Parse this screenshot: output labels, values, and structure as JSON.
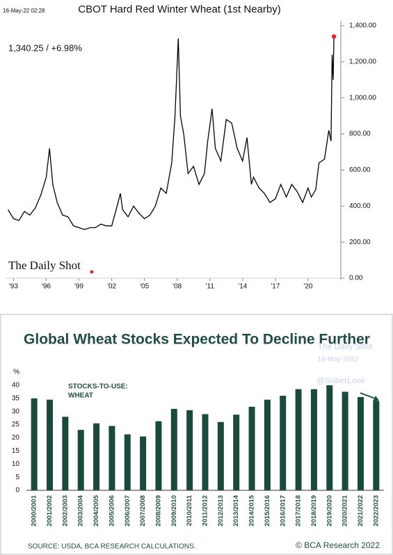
{
  "chart_data": [
    {
      "type": "line",
      "title": "CBOT Hard Red Winter Wheat (1st Nearby)",
      "annotations": [
        "16-May-22 02:28",
        "1,340.25  /  +6.98%",
        "The Daily Shot"
      ],
      "color": "#000000",
      "marker_color": "#e8262a",
      "x": [
        1992.5,
        1993,
        1993.5,
        1994,
        1994.5,
        1995,
        1995.5,
        1996,
        1996.3,
        1996.6,
        1997,
        1997.5,
        1998,
        1998.5,
        1999,
        1999.5,
        2000,
        2000.5,
        2001,
        2001.5,
        2002,
        2002.5,
        2002.8,
        2003,
        2003.5,
        2004,
        2004.5,
        2005,
        2005.5,
        2006,
        2006.5,
        2007,
        2007.5,
        2007.8,
        2008.1,
        2008.3,
        2008.6,
        2009,
        2009.5,
        2010,
        2010.5,
        2010.8,
        2011,
        2011.2,
        2011.5,
        2012,
        2012.5,
        2013,
        2013.5,
        2014,
        2014.4,
        2014.8,
        2015,
        2015.5,
        2016,
        2016.5,
        2017,
        2017.5,
        2018,
        2018.5,
        2019,
        2019.5,
        2020,
        2020.3,
        2020.7,
        2021,
        2021.5,
        2021.9,
        2022.1,
        2022.2,
        2022.3,
        2022.37
      ],
      "values": [
        380,
        330,
        320,
        370,
        350,
        390,
        460,
        560,
        720,
        520,
        420,
        350,
        340,
        290,
        280,
        270,
        280,
        280,
        300,
        290,
        290,
        400,
        470,
        380,
        340,
        400,
        360,
        330,
        350,
        400,
        500,
        470,
        640,
        900,
        1330,
        900,
        800,
        580,
        620,
        520,
        580,
        760,
        850,
        940,
        720,
        650,
        880,
        860,
        720,
        650,
        780,
        520,
        560,
        500,
        470,
        420,
        440,
        520,
        450,
        520,
        480,
        420,
        500,
        450,
        490,
        640,
        660,
        820,
        760,
        1240,
        1100,
        1340.25
      ],
      "xlim": [
        1992.4,
        2023.0
      ],
      "xticks": [
        {
          "value": 1993,
          "label": "'93"
        },
        {
          "value": 1996,
          "label": "'96"
        },
        {
          "value": 1999,
          "label": "'99"
        },
        {
          "value": 2002,
          "label": "'02"
        },
        {
          "value": 2005,
          "label": "'05"
        },
        {
          "value": 2008,
          "label": "'08"
        },
        {
          "value": 2011,
          "label": "'11"
        },
        {
          "value": 2014,
          "label": "'14"
        },
        {
          "value": 2017,
          "label": "'17"
        },
        {
          "value": 2020,
          "label": "'20"
        }
      ],
      "ylim": [
        0,
        1400
      ],
      "yticks": [
        {
          "value": 0,
          "label": "0.00"
        },
        {
          "value": 200,
          "label": "200.00"
        },
        {
          "value": 400,
          "label": "400.00"
        },
        {
          "value": 600,
          "label": "600.00"
        },
        {
          "value": 800,
          "label": "800.00"
        },
        {
          "value": 1000,
          "label": "1,000.00"
        },
        {
          "value": 1200,
          "label": "1,200.00"
        },
        {
          "value": 1400,
          "label": "1,400.00"
        }
      ]
    },
    {
      "type": "bar",
      "title": "Global Wheat Stocks Expected To Decline Further",
      "annotations": [
        "STOCKS-TO-USE:",
        "WHEAT",
        "SOURCE: USDA, BCA RESEARCH CALCULATIONS.",
        "© BCA Research 2022",
        "The Daily Shot",
        "16-May-2022",
        "@SoberLook"
      ],
      "color": "#1a4a3e",
      "categories": [
        "2000/2001",
        "2001/2002",
        "2002/2003",
        "2003/2004",
        "2004/2005",
        "2005/2006",
        "2006/2007",
        "2007/2008",
        "2008/2009",
        "2009/2010",
        "2010/2011",
        "2011/2012",
        "2012/2013",
        "2013/2014",
        "2014/2015",
        "2015/2016",
        "2016/2017",
        "2017/2018",
        "2018/2019",
        "2019/2020",
        "2020/2021",
        "2021/2022",
        "2022/2023"
      ],
      "values": [
        35,
        34.5,
        28,
        23,
        25.5,
        24.5,
        21.3,
        20.5,
        26.3,
        31,
        30.5,
        29,
        26,
        28.8,
        31.8,
        34.5,
        36,
        38.5,
        38.5,
        40,
        37.5,
        35.5,
        34
      ],
      "ylim": [
        0,
        45
      ],
      "yticks": [
        0,
        5,
        10,
        15,
        20,
        25,
        30,
        35,
        40,
        {
          "value": 45,
          "label": "%"
        }
      ]
    }
  ]
}
